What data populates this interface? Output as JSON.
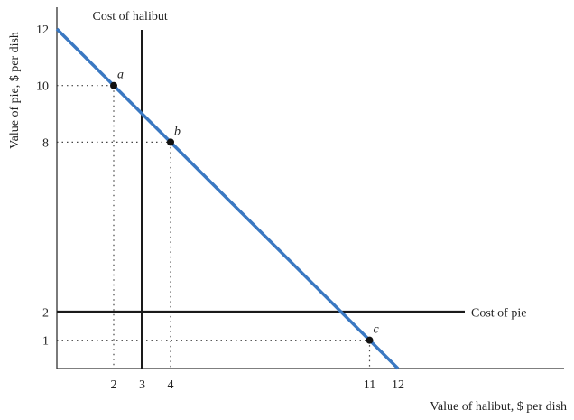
{
  "chart_data": {
    "type": "line",
    "xlabel": "Value of halibut, $ per dish",
    "ylabel": "Value of pie, $ per dish",
    "xlim": [
      0,
      12.4
    ],
    "ylim": [
      0,
      12.6
    ],
    "x_ticks": [
      "2",
      "3",
      "4",
      "11",
      "12"
    ],
    "y_ticks": [
      "1",
      "2",
      "8",
      "10",
      "12"
    ],
    "series": [
      {
        "role": "budget-line",
        "color": "#3a78c2",
        "points": [
          [
            0,
            12
          ],
          [
            12,
            0
          ]
        ]
      }
    ],
    "reference_lines": [
      {
        "orientation": "vertical",
        "x": 3,
        "label": "Cost of halibut",
        "color": "#1a1a1a"
      },
      {
        "orientation": "horizontal",
        "y": 2,
        "label": "Cost of pie",
        "color": "#1a1a1a"
      }
    ],
    "points": [
      {
        "label": "a",
        "x": 2,
        "y": 10
      },
      {
        "label": "b",
        "x": 4,
        "y": 8
      },
      {
        "label": "c",
        "x": 11,
        "y": 1
      }
    ]
  }
}
